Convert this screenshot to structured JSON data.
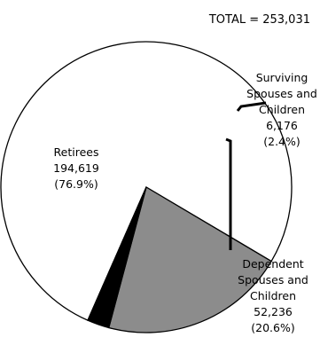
{
  "total_label": "TOTAL = 253,031",
  "chart_data": {
    "type": "pie",
    "total": 253031,
    "slices": [
      {
        "name": "Retirees",
        "value": 194619,
        "value_label": "194,619",
        "percent_label": "(76.9%)",
        "color": "#ffffff"
      },
      {
        "name": "Dependent Spouses and Children",
        "value": 52236,
        "value_label": "52,236",
        "percent_label": "(20.6%)",
        "color": "#8c8c8c"
      },
      {
        "name": "Surviving Spouses and Children",
        "value": 6176,
        "value_label": "6,176",
        "percent_label": "(2.4%)",
        "color": "#000000"
      }
    ],
    "labels": {
      "retirees": [
        "Retirees",
        "194,619",
        "(76.9%)"
      ],
      "dependent": [
        "Dependent",
        "Spouses and",
        "Children",
        "52,236",
        "(20.6%)"
      ],
      "surviving": [
        "Surviving",
        "Spouses and",
        "Children",
        "6,176",
        "(2.4%)"
      ]
    }
  }
}
